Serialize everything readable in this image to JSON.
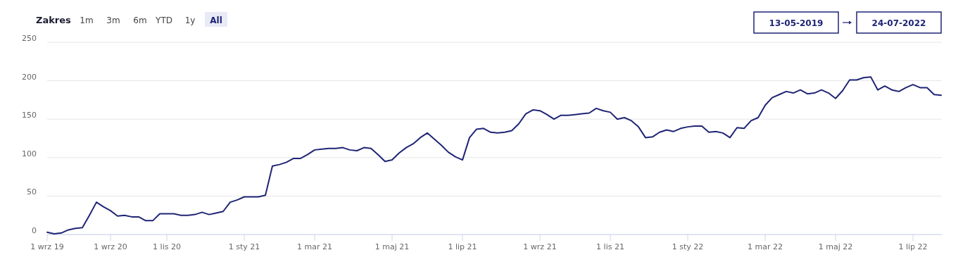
{
  "chart_data": {
    "type": "line",
    "annotations": [
      "Zakres",
      "1m",
      "3m",
      "6m",
      "YTD",
      "1y",
      "All",
      "13-05-2019",
      "24-07-2022"
    ],
    "categories": [
      "1 wrz 19",
      null,
      null,
      null,
      null,
      null,
      null,
      null,
      null,
      "1 wrz 20",
      null,
      null,
      null,
      null,
      null,
      null,
      null,
      "1 lis 20",
      null,
      null,
      null,
      null,
      null,
      null,
      null,
      null,
      null,
      null,
      "1 sty 21",
      null,
      null,
      null,
      null,
      null,
      null,
      null,
      null,
      null,
      "1 mar 21",
      null,
      null,
      null,
      null,
      null,
      null,
      null,
      null,
      null,
      null,
      "1 maj 21",
      null,
      null,
      null,
      null,
      null,
      null,
      null,
      null,
      null,
      "1 lip 21",
      null,
      null,
      null,
      null,
      null,
      null,
      null,
      null,
      null,
      null,
      "1 wrz 21",
      null,
      null,
      null,
      null,
      null,
      null,
      null,
      null,
      null,
      "1 lis 21",
      null,
      null,
      null,
      null,
      null,
      null,
      null,
      null,
      null,
      null,
      "1 sty 22",
      null,
      null,
      null,
      null,
      null,
      null,
      null,
      null,
      null,
      null,
      "1 mar 22",
      null,
      null,
      null,
      null,
      null,
      null,
      null,
      null,
      null,
      "1 maj 22",
      null,
      null,
      null,
      null,
      null,
      null,
      null,
      null,
      null,
      null,
      "1 lip 22",
      null,
      null,
      null,
      null
    ],
    "series": [
      {
        "color": "#1f2575",
        "values": [
          3,
          1,
          2,
          6,
          8,
          9,
          25,
          42,
          36,
          31,
          24,
          25,
          23,
          23,
          18,
          18,
          27,
          27,
          27,
          25,
          25,
          26,
          29,
          26,
          28,
          30,
          42,
          45,
          49,
          49,
          49,
          51,
          89,
          91,
          94,
          99,
          99,
          104,
          110,
          111,
          112,
          112,
          113,
          110,
          109,
          113,
          112,
          104,
          95,
          97,
          106,
          113,
          118,
          126,
          132,
          124,
          116,
          107,
          101,
          97,
          126,
          137,
          138,
          133,
          132,
          133,
          135,
          144,
          157,
          162,
          161,
          156,
          150,
          155,
          155,
          156,
          157,
          158,
          164,
          161,
          159,
          150,
          152,
          148,
          140,
          126,
          127,
          133,
          136,
          134,
          138,
          140,
          141,
          141,
          133,
          134,
          132,
          126,
          139,
          138,
          148,
          152,
          168,
          178,
          182,
          186,
          184,
          188,
          183,
          184,
          188,
          184,
          177,
          187,
          201,
          201,
          204,
          205,
          188,
          193,
          188,
          186,
          191,
          195,
          191,
          191,
          182,
          181
        ]
      }
    ],
    "ylim": [
      0,
      250
    ],
    "yticks": [
      0,
      50,
      100,
      150,
      200,
      250
    ],
    "grid": "y"
  }
}
